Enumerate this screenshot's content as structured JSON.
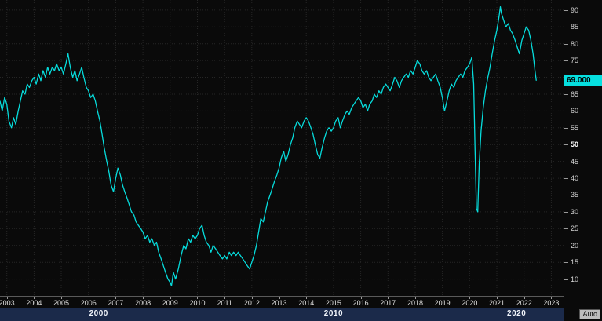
{
  "axis": {
    "auto_label": "Auto"
  },
  "chart_data": {
    "type": "line",
    "title": "",
    "xlabel": "",
    "ylabel": "",
    "xlim": [
      2002.75,
      2023.45
    ],
    "ylim": [
      5,
      93
    ],
    "yticks": [
      10,
      15,
      20,
      25,
      30,
      35,
      40,
      45,
      50,
      55,
      60,
      65,
      70,
      75,
      80,
      85,
      90
    ],
    "emphasized_tick": 50,
    "xticks": [
      2003,
      2004,
      2005,
      2006,
      2007,
      2008,
      2009,
      2010,
      2011,
      2012,
      2013,
      2014,
      2015,
      2016,
      2017,
      2018,
      2019,
      2020,
      2021,
      2022,
      2023
    ],
    "decades": [
      {
        "label": "2000",
        "start": 2000
      },
      {
        "label": "2010",
        "start": 2010
      },
      {
        "label": "2020",
        "start": 2020
      }
    ],
    "last_price": "69.000",
    "line_color": "#06dcdc",
    "badge_bg": "#06e0e0",
    "badge_text_color": "#000000",
    "decade_bar_color": "#1b2a4a",
    "grid": true,
    "legend": null,
    "points": [
      [
        2002.75,
        63
      ],
      [
        2002.83,
        60
      ],
      [
        2002.92,
        64
      ],
      [
        2003.0,
        62
      ],
      [
        2003.08,
        57
      ],
      [
        2003.17,
        55
      ],
      [
        2003.25,
        58
      ],
      [
        2003.33,
        56
      ],
      [
        2003.42,
        60
      ],
      [
        2003.5,
        63
      ],
      [
        2003.58,
        66
      ],
      [
        2003.67,
        65
      ],
      [
        2003.75,
        68
      ],
      [
        2003.83,
        67
      ],
      [
        2003.92,
        69
      ],
      [
        2004.0,
        70
      ],
      [
        2004.08,
        68
      ],
      [
        2004.17,
        71
      ],
      [
        2004.25,
        69
      ],
      [
        2004.33,
        72
      ],
      [
        2004.42,
        70
      ],
      [
        2004.5,
        73
      ],
      [
        2004.58,
        71
      ],
      [
        2004.67,
        73
      ],
      [
        2004.75,
        72
      ],
      [
        2004.83,
        74
      ],
      [
        2004.92,
        72
      ],
      [
        2005.0,
        73
      ],
      [
        2005.08,
        71
      ],
      [
        2005.17,
        74
      ],
      [
        2005.25,
        77
      ],
      [
        2005.33,
        73
      ],
      [
        2005.42,
        70
      ],
      [
        2005.5,
        72
      ],
      [
        2005.58,
        69
      ],
      [
        2005.67,
        71
      ],
      [
        2005.75,
        73
      ],
      [
        2005.83,
        70
      ],
      [
        2005.92,
        67
      ],
      [
        2006.0,
        66
      ],
      [
        2006.08,
        64
      ],
      [
        2006.17,
        65
      ],
      [
        2006.25,
        63
      ],
      [
        2006.33,
        60
      ],
      [
        2006.42,
        57
      ],
      [
        2006.5,
        53
      ],
      [
        2006.58,
        49
      ],
      [
        2006.67,
        45
      ],
      [
        2006.75,
        42
      ],
      [
        2006.83,
        38
      ],
      [
        2006.92,
        36
      ],
      [
        2007.0,
        40
      ],
      [
        2007.08,
        43
      ],
      [
        2007.17,
        41
      ],
      [
        2007.25,
        38
      ],
      [
        2007.33,
        36
      ],
      [
        2007.42,
        34
      ],
      [
        2007.5,
        32
      ],
      [
        2007.58,
        30
      ],
      [
        2007.67,
        29
      ],
      [
        2007.75,
        27
      ],
      [
        2007.83,
        26
      ],
      [
        2007.92,
        25
      ],
      [
        2008.0,
        24
      ],
      [
        2008.08,
        22
      ],
      [
        2008.17,
        23
      ],
      [
        2008.25,
        21
      ],
      [
        2008.33,
        22
      ],
      [
        2008.42,
        20
      ],
      [
        2008.5,
        21
      ],
      [
        2008.58,
        18
      ],
      [
        2008.67,
        16
      ],
      [
        2008.75,
        14
      ],
      [
        2008.83,
        12
      ],
      [
        2008.92,
        10
      ],
      [
        2009.0,
        9
      ],
      [
        2009.05,
        8
      ],
      [
        2009.12,
        12
      ],
      [
        2009.2,
        10
      ],
      [
        2009.3,
        13
      ],
      [
        2009.4,
        17
      ],
      [
        2009.5,
        20
      ],
      [
        2009.58,
        19
      ],
      [
        2009.67,
        22
      ],
      [
        2009.75,
        21
      ],
      [
        2009.83,
        23
      ],
      [
        2009.92,
        22
      ],
      [
        2010.0,
        23
      ],
      [
        2010.08,
        25
      ],
      [
        2010.17,
        26
      ],
      [
        2010.25,
        23
      ],
      [
        2010.33,
        21
      ],
      [
        2010.42,
        20
      ],
      [
        2010.5,
        18
      ],
      [
        2010.58,
        20
      ],
      [
        2010.67,
        19
      ],
      [
        2010.75,
        18
      ],
      [
        2010.83,
        17
      ],
      [
        2010.92,
        16
      ],
      [
        2011.0,
        17
      ],
      [
        2011.08,
        16
      ],
      [
        2011.17,
        18
      ],
      [
        2011.25,
        17
      ],
      [
        2011.33,
        18
      ],
      [
        2011.42,
        17
      ],
      [
        2011.5,
        18
      ],
      [
        2011.58,
        17
      ],
      [
        2011.67,
        16
      ],
      [
        2011.75,
        15
      ],
      [
        2011.83,
        14
      ],
      [
        2011.92,
        13
      ],
      [
        2012.0,
        15
      ],
      [
        2012.08,
        17
      ],
      [
        2012.17,
        20
      ],
      [
        2012.25,
        24
      ],
      [
        2012.33,
        28
      ],
      [
        2012.42,
        27
      ],
      [
        2012.5,
        30
      ],
      [
        2012.58,
        33
      ],
      [
        2012.67,
        35
      ],
      [
        2012.75,
        37
      ],
      [
        2012.83,
        39
      ],
      [
        2012.92,
        41
      ],
      [
        2013.0,
        43
      ],
      [
        2013.08,
        46
      ],
      [
        2013.17,
        48
      ],
      [
        2013.25,
        45
      ],
      [
        2013.33,
        47
      ],
      [
        2013.42,
        50
      ],
      [
        2013.5,
        52
      ],
      [
        2013.58,
        55
      ],
      [
        2013.67,
        57
      ],
      [
        2013.75,
        56
      ],
      [
        2013.83,
        55
      ],
      [
        2013.92,
        57
      ],
      [
        2014.0,
        58
      ],
      [
        2014.08,
        57
      ],
      [
        2014.17,
        55
      ],
      [
        2014.25,
        53
      ],
      [
        2014.33,
        50
      ],
      [
        2014.42,
        47
      ],
      [
        2014.5,
        46
      ],
      [
        2014.58,
        49
      ],
      [
        2014.67,
        52
      ],
      [
        2014.75,
        54
      ],
      [
        2014.83,
        55
      ],
      [
        2014.92,
        54
      ],
      [
        2015.0,
        55
      ],
      [
        2015.08,
        57
      ],
      [
        2015.17,
        58
      ],
      [
        2015.25,
        55
      ],
      [
        2015.33,
        57
      ],
      [
        2015.42,
        59
      ],
      [
        2015.5,
        60
      ],
      [
        2015.58,
        59
      ],
      [
        2015.67,
        61
      ],
      [
        2015.75,
        62
      ],
      [
        2015.83,
        63
      ],
      [
        2015.92,
        64
      ],
      [
        2016.0,
        63
      ],
      [
        2016.08,
        61
      ],
      [
        2016.17,
        62
      ],
      [
        2016.25,
        60
      ],
      [
        2016.33,
        62
      ],
      [
        2016.42,
        63
      ],
      [
        2016.5,
        65
      ],
      [
        2016.58,
        64
      ],
      [
        2016.67,
        66
      ],
      [
        2016.75,
        65
      ],
      [
        2016.83,
        67
      ],
      [
        2016.92,
        68
      ],
      [
        2017.0,
        67
      ],
      [
        2017.08,
        66
      ],
      [
        2017.17,
        68
      ],
      [
        2017.25,
        70
      ],
      [
        2017.33,
        69
      ],
      [
        2017.42,
        67
      ],
      [
        2017.5,
        69
      ],
      [
        2017.58,
        70
      ],
      [
        2017.67,
        71
      ],
      [
        2017.75,
        70
      ],
      [
        2017.83,
        72
      ],
      [
        2017.92,
        71
      ],
      [
        2018.0,
        73
      ],
      [
        2018.08,
        75
      ],
      [
        2018.17,
        74
      ],
      [
        2018.25,
        72
      ],
      [
        2018.33,
        71
      ],
      [
        2018.42,
        72
      ],
      [
        2018.5,
        70
      ],
      [
        2018.58,
        69
      ],
      [
        2018.67,
        70
      ],
      [
        2018.75,
        71
      ],
      [
        2018.83,
        69
      ],
      [
        2018.92,
        67
      ],
      [
        2019.0,
        64
      ],
      [
        2019.08,
        60
      ],
      [
        2019.17,
        63
      ],
      [
        2019.25,
        66
      ],
      [
        2019.33,
        68
      ],
      [
        2019.42,
        67
      ],
      [
        2019.5,
        69
      ],
      [
        2019.58,
        70
      ],
      [
        2019.67,
        71
      ],
      [
        2019.75,
        70
      ],
      [
        2019.83,
        72
      ],
      [
        2019.92,
        73
      ],
      [
        2020.0,
        74
      ],
      [
        2020.08,
        76
      ],
      [
        2020.15,
        68
      ],
      [
        2020.2,
        48
      ],
      [
        2020.25,
        31
      ],
      [
        2020.3,
        30
      ],
      [
        2020.35,
        44
      ],
      [
        2020.42,
        54
      ],
      [
        2020.5,
        61
      ],
      [
        2020.58,
        66
      ],
      [
        2020.67,
        70
      ],
      [
        2020.75,
        73
      ],
      [
        2020.83,
        77
      ],
      [
        2020.92,
        81
      ],
      [
        2021.0,
        84
      ],
      [
        2021.08,
        88
      ],
      [
        2021.13,
        91
      ],
      [
        2021.17,
        89
      ],
      [
        2021.25,
        87
      ],
      [
        2021.33,
        85
      ],
      [
        2021.42,
        86
      ],
      [
        2021.5,
        84
      ],
      [
        2021.58,
        83
      ],
      [
        2021.67,
        81
      ],
      [
        2021.75,
        79
      ],
      [
        2021.83,
        77
      ],
      [
        2021.92,
        81
      ],
      [
        2022.0,
        83
      ],
      [
        2022.08,
        85
      ],
      [
        2022.17,
        84
      ],
      [
        2022.25,
        81
      ],
      [
        2022.33,
        77
      ],
      [
        2022.4,
        72
      ],
      [
        2022.45,
        69
      ]
    ]
  }
}
